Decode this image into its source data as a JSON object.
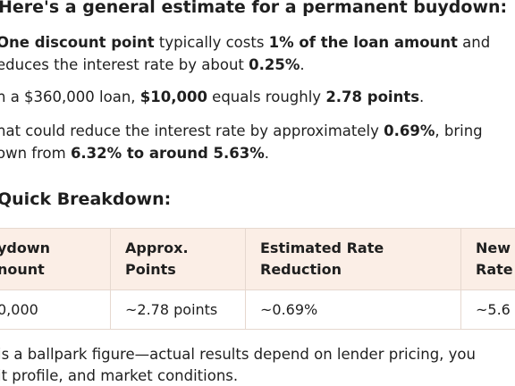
{
  "heading": "Here's a general estimate for a permanent buydown:",
  "lines": [
    [
      {
        "text": "One discount point",
        "bold": true
      },
      {
        "text": " typically costs ",
        "bold": false
      },
      {
        "text": "1% of the loan amount",
        "bold": true
      },
      {
        "text": " and",
        "bold": false
      }
    ],
    [
      {
        "text": "educes the interest rate by about ",
        "bold": false
      },
      {
        "text": "0.25%",
        "bold": true
      },
      {
        "text": ".",
        "bold": false
      }
    ],
    [
      {
        "text": "n a $360,000 loan, ",
        "bold": false
      },
      {
        "text": "$10,000",
        "bold": true
      },
      {
        "text": " equals roughly ",
        "bold": false
      },
      {
        "text": "2.78 points",
        "bold": true
      },
      {
        "text": ".",
        "bold": false
      }
    ],
    [
      {
        "text": "hat could reduce the interest rate by approximately ",
        "bold": false
      },
      {
        "text": "0.69%",
        "bold": true
      },
      {
        "text": ", bring",
        "bold": false
      }
    ],
    [
      {
        "text": "own from ",
        "bold": false
      },
      {
        "text": "6.32% to around 5.63%",
        "bold": true
      },
      {
        "text": ".",
        "bold": false
      }
    ]
  ],
  "breakdown_title": "Quick Breakdown:",
  "table": {
    "header": [
      [
        "ydown",
        "nount"
      ],
      [
        "Approx.",
        "Points"
      ],
      [
        "Estimated Rate",
        "Reduction"
      ],
      [
        "New",
        "Rate"
      ]
    ],
    "rows": [
      [
        "0,000",
        "~2.78 points",
        "~0.69%",
        "~5.6"
      ]
    ]
  },
  "footer": [
    "is a ballpark figure—actual results depend on lender pricing, you",
    "it profile, and market conditions."
  ]
}
